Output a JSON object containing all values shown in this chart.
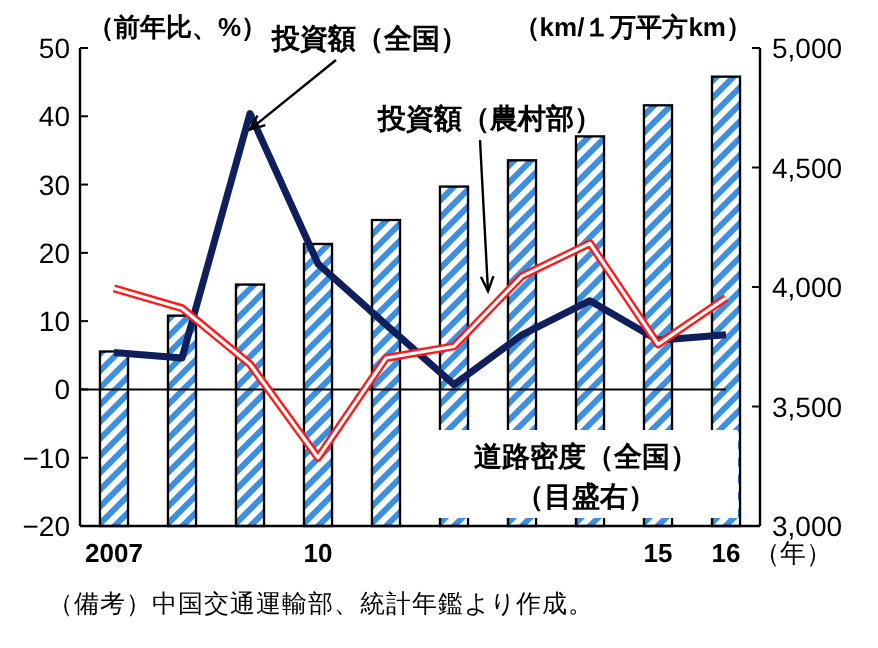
{
  "chart_data": {
    "type": "line",
    "categories": [
      "2007",
      null,
      null,
      "10",
      null,
      null,
      null,
      null,
      "15",
      "16"
    ],
    "xlabel": "（年）",
    "ylabel": "（前年比、%）",
    "y2label": "（km/１万平方km）",
    "ylim": [
      -20,
      50
    ],
    "yticks": [
      -20,
      -10,
      0,
      10,
      20,
      30,
      40,
      50
    ],
    "y2lim": [
      3000,
      5000
    ],
    "y2ticks": [
      {
        "value": 3000,
        "label": "3,000"
      },
      {
        "value": 3500,
        "label": "3,500"
      },
      {
        "value": 4000,
        "label": "4,000"
      },
      {
        "value": 4500,
        "label": "4,500"
      },
      {
        "value": 5000,
        "label": "5,000"
      }
    ],
    "series": [
      {
        "name": "道路密度（全国）（目盛右）",
        "type": "bar",
        "axis": "y2",
        "color": "#3d8fe0",
        "values": [
          3730,
          3880,
          4010,
          4180,
          4280,
          4420,
          4530,
          4630,
          4760,
          4880
        ]
      },
      {
        "name": "投資額（全国）",
        "color": "#0f1f5c",
        "values": [
          5.4,
          4.6,
          40.4,
          18.4,
          9.5,
          0.7,
          8,
          13,
          7.2,
          8
        ]
      },
      {
        "name": "投資額（農村部）",
        "color": "#ff1a1a",
        "values": [
          14.8,
          11.9,
          3.7,
          -10,
          4.6,
          6.3,
          16.6,
          21.4,
          6.6,
          13.4
        ]
      }
    ],
    "ref_lines": [
      {
        "axis": "y",
        "value": 0,
        "color": "#000000"
      }
    ],
    "annotations": [
      "（備考）中国交通運輸部、統計年鑑より作成。"
    ],
    "line_style": "solid"
  }
}
